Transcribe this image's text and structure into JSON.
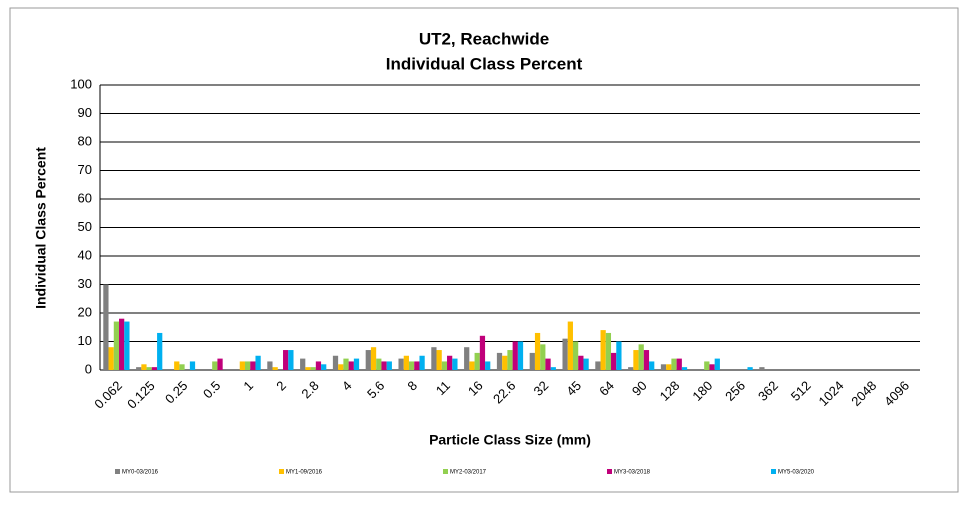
{
  "chart_data": {
    "type": "bar",
    "title": "UT2, Reachwide",
    "subtitle": "Individual Class Percent",
    "x_label": "Particle Class Size (mm)",
    "y_label": "Individual Class Percent",
    "categories": [
      "0.062",
      "0.125",
      "0.25",
      "0.5",
      "1",
      "2",
      "2.8",
      "4",
      "5.6",
      "8",
      "11",
      "16",
      "22.6",
      "32",
      "45",
      "64",
      "90",
      "128",
      "180",
      "256",
      "362",
      "512",
      "1024",
      "2048",
      "4096"
    ],
    "series": [
      {
        "name": "MY0-03/2016",
        "color": "#808080",
        "values": [
          30,
          1,
          0,
          0,
          0,
          3,
          4,
          5,
          7,
          4,
          8,
          8,
          6,
          6,
          11,
          3,
          1,
          2,
          0,
          0,
          1,
          0,
          0,
          0,
          0
        ]
      },
      {
        "name": "MY1-09/2016",
        "color": "#ffc000",
        "values": [
          8,
          2,
          3,
          0,
          3,
          1,
          1,
          2,
          8,
          5,
          7,
          3,
          5,
          13,
          17,
          14,
          7,
          2,
          0,
          0,
          0,
          0,
          0,
          0,
          0
        ]
      },
      {
        "name": "MY2-03/2017",
        "color": "#92d050",
        "values": [
          17,
          1,
          2,
          3,
          3,
          0,
          1,
          4,
          4,
          3,
          3,
          6,
          7,
          9,
          10,
          13,
          9,
          4,
          3,
          0,
          0,
          0,
          0,
          0,
          0
        ]
      },
      {
        "name": "MY3-03/2018",
        "color": "#c0007a",
        "values": [
          18,
          1,
          0,
          4,
          3,
          7,
          3,
          3,
          3,
          3,
          5,
          12,
          10,
          4,
          5,
          6,
          7,
          4,
          2,
          0,
          0,
          0,
          0,
          0,
          0
        ]
      },
      {
        "name": "MY5-03/2020",
        "color": "#00b0f0",
        "values": [
          17,
          13,
          3,
          0,
          5,
          7,
          2,
          4,
          3,
          5,
          4,
          3,
          10,
          1,
          4,
          10,
          3,
          1,
          4,
          1,
          0,
          0,
          0,
          0,
          0
        ]
      }
    ],
    "ylim": [
      0,
      100
    ],
    "yticks": [
      0,
      10,
      20,
      30,
      40,
      50,
      60,
      70,
      80,
      90,
      100
    ],
    "grid": true,
    "legend": "bottom"
  }
}
